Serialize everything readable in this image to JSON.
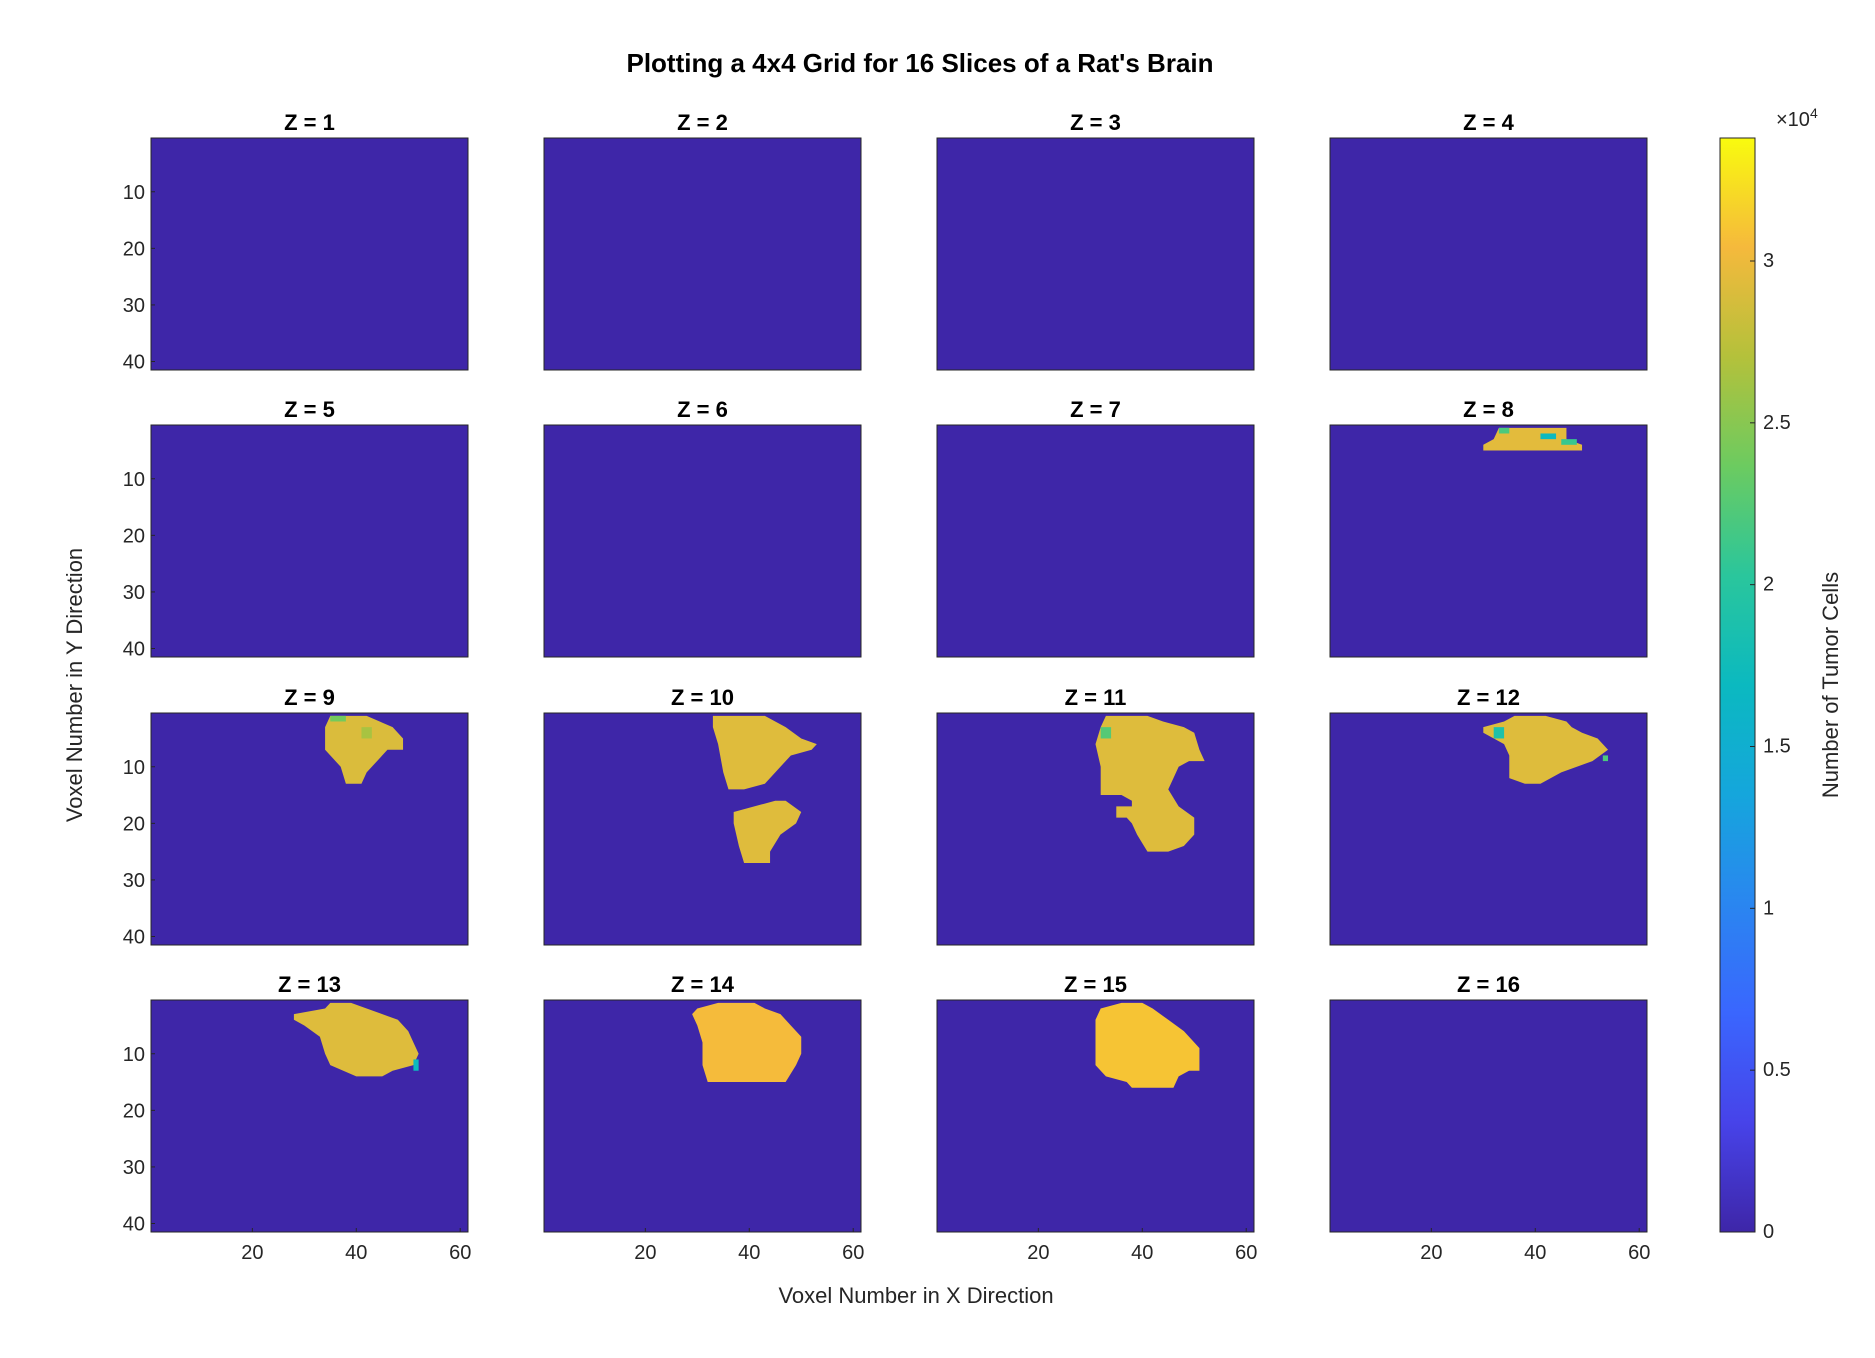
{
  "chart_data": {
    "type": "heatmap",
    "title": "Plotting a 4x4 Grid for 16 Slices of a Rat's Brain",
    "xlabel": "Voxel Number in X Direction",
    "ylabel": "Voxel Number in Y Direction",
    "xlim": [
      0.5,
      61.5
    ],
    "ylim": [
      0.5,
      41.5
    ],
    "x_ticks": [
      20,
      40,
      60
    ],
    "y_ticks": [
      10,
      20,
      30,
      40
    ],
    "colormap": "parula",
    "colorbar": {
      "label": "Number of Tumor Cells",
      "exponent_label": "×10",
      "exponent_power": "4",
      "range": [
        0,
        33800
      ],
      "ticks": [
        0,
        0.5,
        1,
        1.5,
        2,
        2.5,
        3
      ],
      "tick_labels": [
        "0",
        "0.5",
        "1",
        "1.5",
        "2",
        "2.5",
        "3"
      ]
    },
    "background_value": 0,
    "panels": [
      {
        "title": "Z = 1",
        "regions": []
      },
      {
        "title": "Z = 2",
        "regions": []
      },
      {
        "title": "Z = 3",
        "regions": []
      },
      {
        "title": "Z = 4",
        "regions": []
      },
      {
        "title": "Z = 5",
        "regions": []
      },
      {
        "title": "Z = 6",
        "regions": []
      },
      {
        "title": "Z = 7",
        "regions": []
      },
      {
        "title": "Z = 8",
        "regions": [
          {
            "points": [
              [
                33,
                1
              ],
              [
                46,
                1
              ],
              [
                46,
                3
              ],
              [
                49,
                4
              ],
              [
                49,
                5
              ],
              [
                30,
                5
              ],
              [
                30,
                4
              ],
              [
                32,
                3
              ]
            ],
            "value": 29500
          }
        ],
        "spots": [
          {
            "x": 33,
            "y": 1,
            "w": 2,
            "h": 1,
            "value": 22000
          },
          {
            "x": 41,
            "y": 2,
            "w": 3,
            "h": 1,
            "value": 17000
          },
          {
            "x": 45,
            "y": 3,
            "w": 3,
            "h": 1,
            "value": 21000
          }
        ]
      },
      {
        "title": "Z = 9",
        "regions": [
          {
            "points": [
              [
                35,
                1
              ],
              [
                42,
                1
              ],
              [
                47,
                3
              ],
              [
                49,
                5
              ],
              [
                49,
                7
              ],
              [
                46,
                7
              ],
              [
                42,
                11
              ],
              [
                41,
                13
              ],
              [
                38,
                13
              ],
              [
                37,
                10
              ],
              [
                34,
                7
              ],
              [
                34,
                3
              ]
            ],
            "value": 29000
          }
        ],
        "spots": [
          {
            "x": 35,
            "y": 1,
            "w": 3,
            "h": 1,
            "value": 24000
          },
          {
            "x": 41,
            "y": 3,
            "w": 2,
            "h": 2,
            "value": 26500
          }
        ]
      },
      {
        "title": "Z = 10",
        "regions": [
          {
            "points": [
              [
                33,
                1
              ],
              [
                43,
                1
              ],
              [
                47,
                3
              ],
              [
                50,
                5
              ],
              [
                53,
                6
              ],
              [
                52,
                7
              ],
              [
                48,
                8
              ],
              [
                46,
                10
              ],
              [
                43,
                13
              ],
              [
                39,
                14
              ],
              [
                36,
                14
              ],
              [
                35,
                11
              ],
              [
                34,
                6
              ],
              [
                33,
                3
              ]
            ],
            "value": 29300
          },
          {
            "points": [
              [
                45,
                16
              ],
              [
                47,
                16
              ],
              [
                50,
                18
              ],
              [
                49,
                20
              ],
              [
                46,
                22
              ],
              [
                44,
                25
              ],
              [
                44,
                27
              ],
              [
                39,
                27
              ],
              [
                38,
                24
              ],
              [
                37,
                20
              ],
              [
                37,
                18
              ]
            ],
            "value": 29300
          }
        ],
        "spots": []
      },
      {
        "title": "Z = 11",
        "regions": [
          {
            "points": [
              [
                33,
                1
              ],
              [
                41,
                1
              ],
              [
                44,
                2
              ],
              [
                48,
                3
              ],
              [
                50,
                4
              ],
              [
                51,
                7
              ],
              [
                52,
                9
              ],
              [
                49,
                9
              ],
              [
                47,
                10
              ],
              [
                46,
                12
              ],
              [
                45,
                14
              ],
              [
                47,
                17
              ],
              [
                50,
                19
              ],
              [
                50,
                22
              ],
              [
                48,
                24
              ],
              [
                45,
                25
              ],
              [
                41,
                25
              ],
              [
                39,
                22
              ],
              [
                38,
                20
              ],
              [
                37,
                19
              ],
              [
                35,
                19
              ],
              [
                35,
                17
              ],
              [
                38,
                17
              ],
              [
                38,
                16
              ],
              [
                36,
                15
              ],
              [
                32,
                15
              ],
              [
                32,
                10
              ],
              [
                31,
                6
              ],
              [
                32,
                3
              ]
            ],
            "value": 29200
          }
        ],
        "spots": [
          {
            "x": 32,
            "y": 3,
            "w": 2,
            "h": 2,
            "value": 22500
          }
        ]
      },
      {
        "title": "Z = 12",
        "regions": [
          {
            "points": [
              [
                36,
                1
              ],
              [
                42,
                1
              ],
              [
                46,
                2
              ],
              [
                47,
                3
              ],
              [
                49,
                4
              ],
              [
                52,
                5
              ],
              [
                54,
                7
              ],
              [
                51,
                9
              ],
              [
                48,
                10
              ],
              [
                45,
                11
              ],
              [
                41,
                13
              ],
              [
                38,
                13
              ],
              [
                35,
                12
              ],
              [
                35,
                8
              ],
              [
                34,
                6
              ],
              [
                30,
                4
              ],
              [
                30,
                3
              ],
              [
                34,
                2
              ]
            ],
            "value": 29200
          }
        ],
        "spots": [
          {
            "x": 32,
            "y": 3,
            "w": 2,
            "h": 2,
            "value": 19000
          },
          {
            "x": 53,
            "y": 8,
            "w": 1,
            "h": 1,
            "value": 22000
          }
        ]
      },
      {
        "title": "Z = 13",
        "regions": [
          {
            "points": [
              [
                35,
                1
              ],
              [
                39,
                1
              ],
              [
                42,
                2
              ],
              [
                45,
                3
              ],
              [
                48,
                4
              ],
              [
                50,
                6
              ],
              [
                51,
                8
              ],
              [
                52,
                10
              ],
              [
                51,
                12
              ],
              [
                47,
                13
              ],
              [
                45,
                14
              ],
              [
                40,
                14
              ],
              [
                35,
                12
              ],
              [
                34,
                10
              ],
              [
                33,
                7
              ],
              [
                30,
                5
              ],
              [
                28,
                4
              ],
              [
                28,
                3
              ],
              [
                34,
                2
              ]
            ],
            "value": 29200
          }
        ],
        "spots": [
          {
            "x": 51,
            "y": 11,
            "w": 1,
            "h": 2,
            "value": 17000
          }
        ]
      },
      {
        "title": "Z = 14",
        "regions": [
          {
            "points": [
              [
                34,
                1
              ],
              [
                41,
                1
              ],
              [
                43,
                2
              ],
              [
                46,
                3
              ],
              [
                48,
                5
              ],
              [
                50,
                7
              ],
              [
                50,
                10
              ],
              [
                49,
                12
              ],
              [
                47,
                15
              ],
              [
                32,
                15
              ],
              [
                31,
                12
              ],
              [
                31,
                8
              ],
              [
                30,
                5
              ],
              [
                29,
                3
              ],
              [
                30,
                2
              ]
            ],
            "value": 30500
          }
        ],
        "spots": []
      },
      {
        "title": "Z = 15",
        "regions": [
          {
            "points": [
              [
                36,
                1
              ],
              [
                40,
                1
              ],
              [
                42,
                2
              ],
              [
                45,
                4
              ],
              [
                48,
                6
              ],
              [
                49,
                7
              ],
              [
                51,
                9
              ],
              [
                51,
                13
              ],
              [
                49,
                13
              ],
              [
                47,
                14
              ],
              [
                46,
                16
              ],
              [
                38,
                16
              ],
              [
                37,
                15
              ],
              [
                33,
                14
              ],
              [
                31,
                12
              ],
              [
                31,
                8
              ],
              [
                31,
                4
              ],
              [
                32,
                2
              ]
            ],
            "value": 31000
          }
        ],
        "spots": []
      },
      {
        "title": "Z = 16",
        "regions": []
      }
    ]
  }
}
